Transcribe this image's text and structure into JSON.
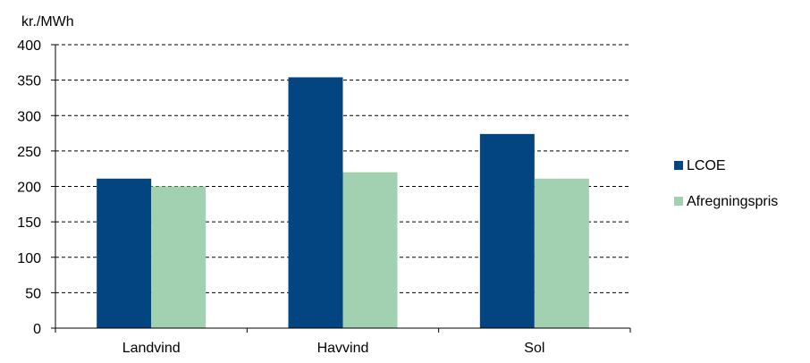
{
  "chart_data": {
    "type": "bar",
    "ylabel": "kr./MWh",
    "categories": [
      "Landvind",
      "Havvind",
      "Sol"
    ],
    "series": [
      {
        "name": "LCOE",
        "values": [
          211,
          354,
          274
        ],
        "color": "#034581"
      },
      {
        "name": "Afregningspris",
        "values": [
          200,
          220,
          211
        ],
        "color": "#a2d1b1"
      }
    ],
    "ylim": [
      0,
      400
    ],
    "yticks": [
      0,
      50,
      100,
      150,
      200,
      250,
      300,
      350,
      400
    ],
    "grid": true,
    "grid_style": "dashed",
    "legend_position": "right"
  }
}
